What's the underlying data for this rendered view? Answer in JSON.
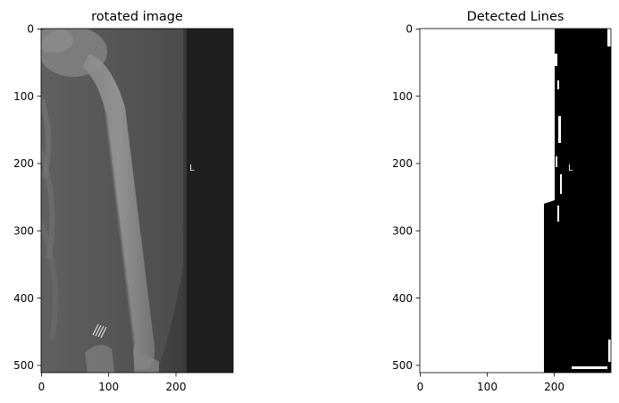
{
  "chart_data": [
    {
      "type": "image",
      "title": "rotated image",
      "xlim": [
        0,
        285
      ],
      "ylim": [
        511,
        0
      ],
      "x_ticks": [
        0,
        100,
        200
      ],
      "y_ticks": [
        0,
        100,
        200,
        300,
        400,
        500
      ],
      "annotation": {
        "text": "L",
        "x": 222,
        "y": 207
      }
    },
    {
      "type": "image",
      "title": "Detected Lines",
      "xlim": [
        0,
        285
      ],
      "ylim": [
        511,
        0
      ],
      "x_ticks": [
        0,
        100,
        200
      ],
      "y_ticks": [
        0,
        100,
        200,
        300,
        400,
        500
      ],
      "annotation": {
        "text": "L",
        "x": 222,
        "y": 207
      }
    }
  ]
}
